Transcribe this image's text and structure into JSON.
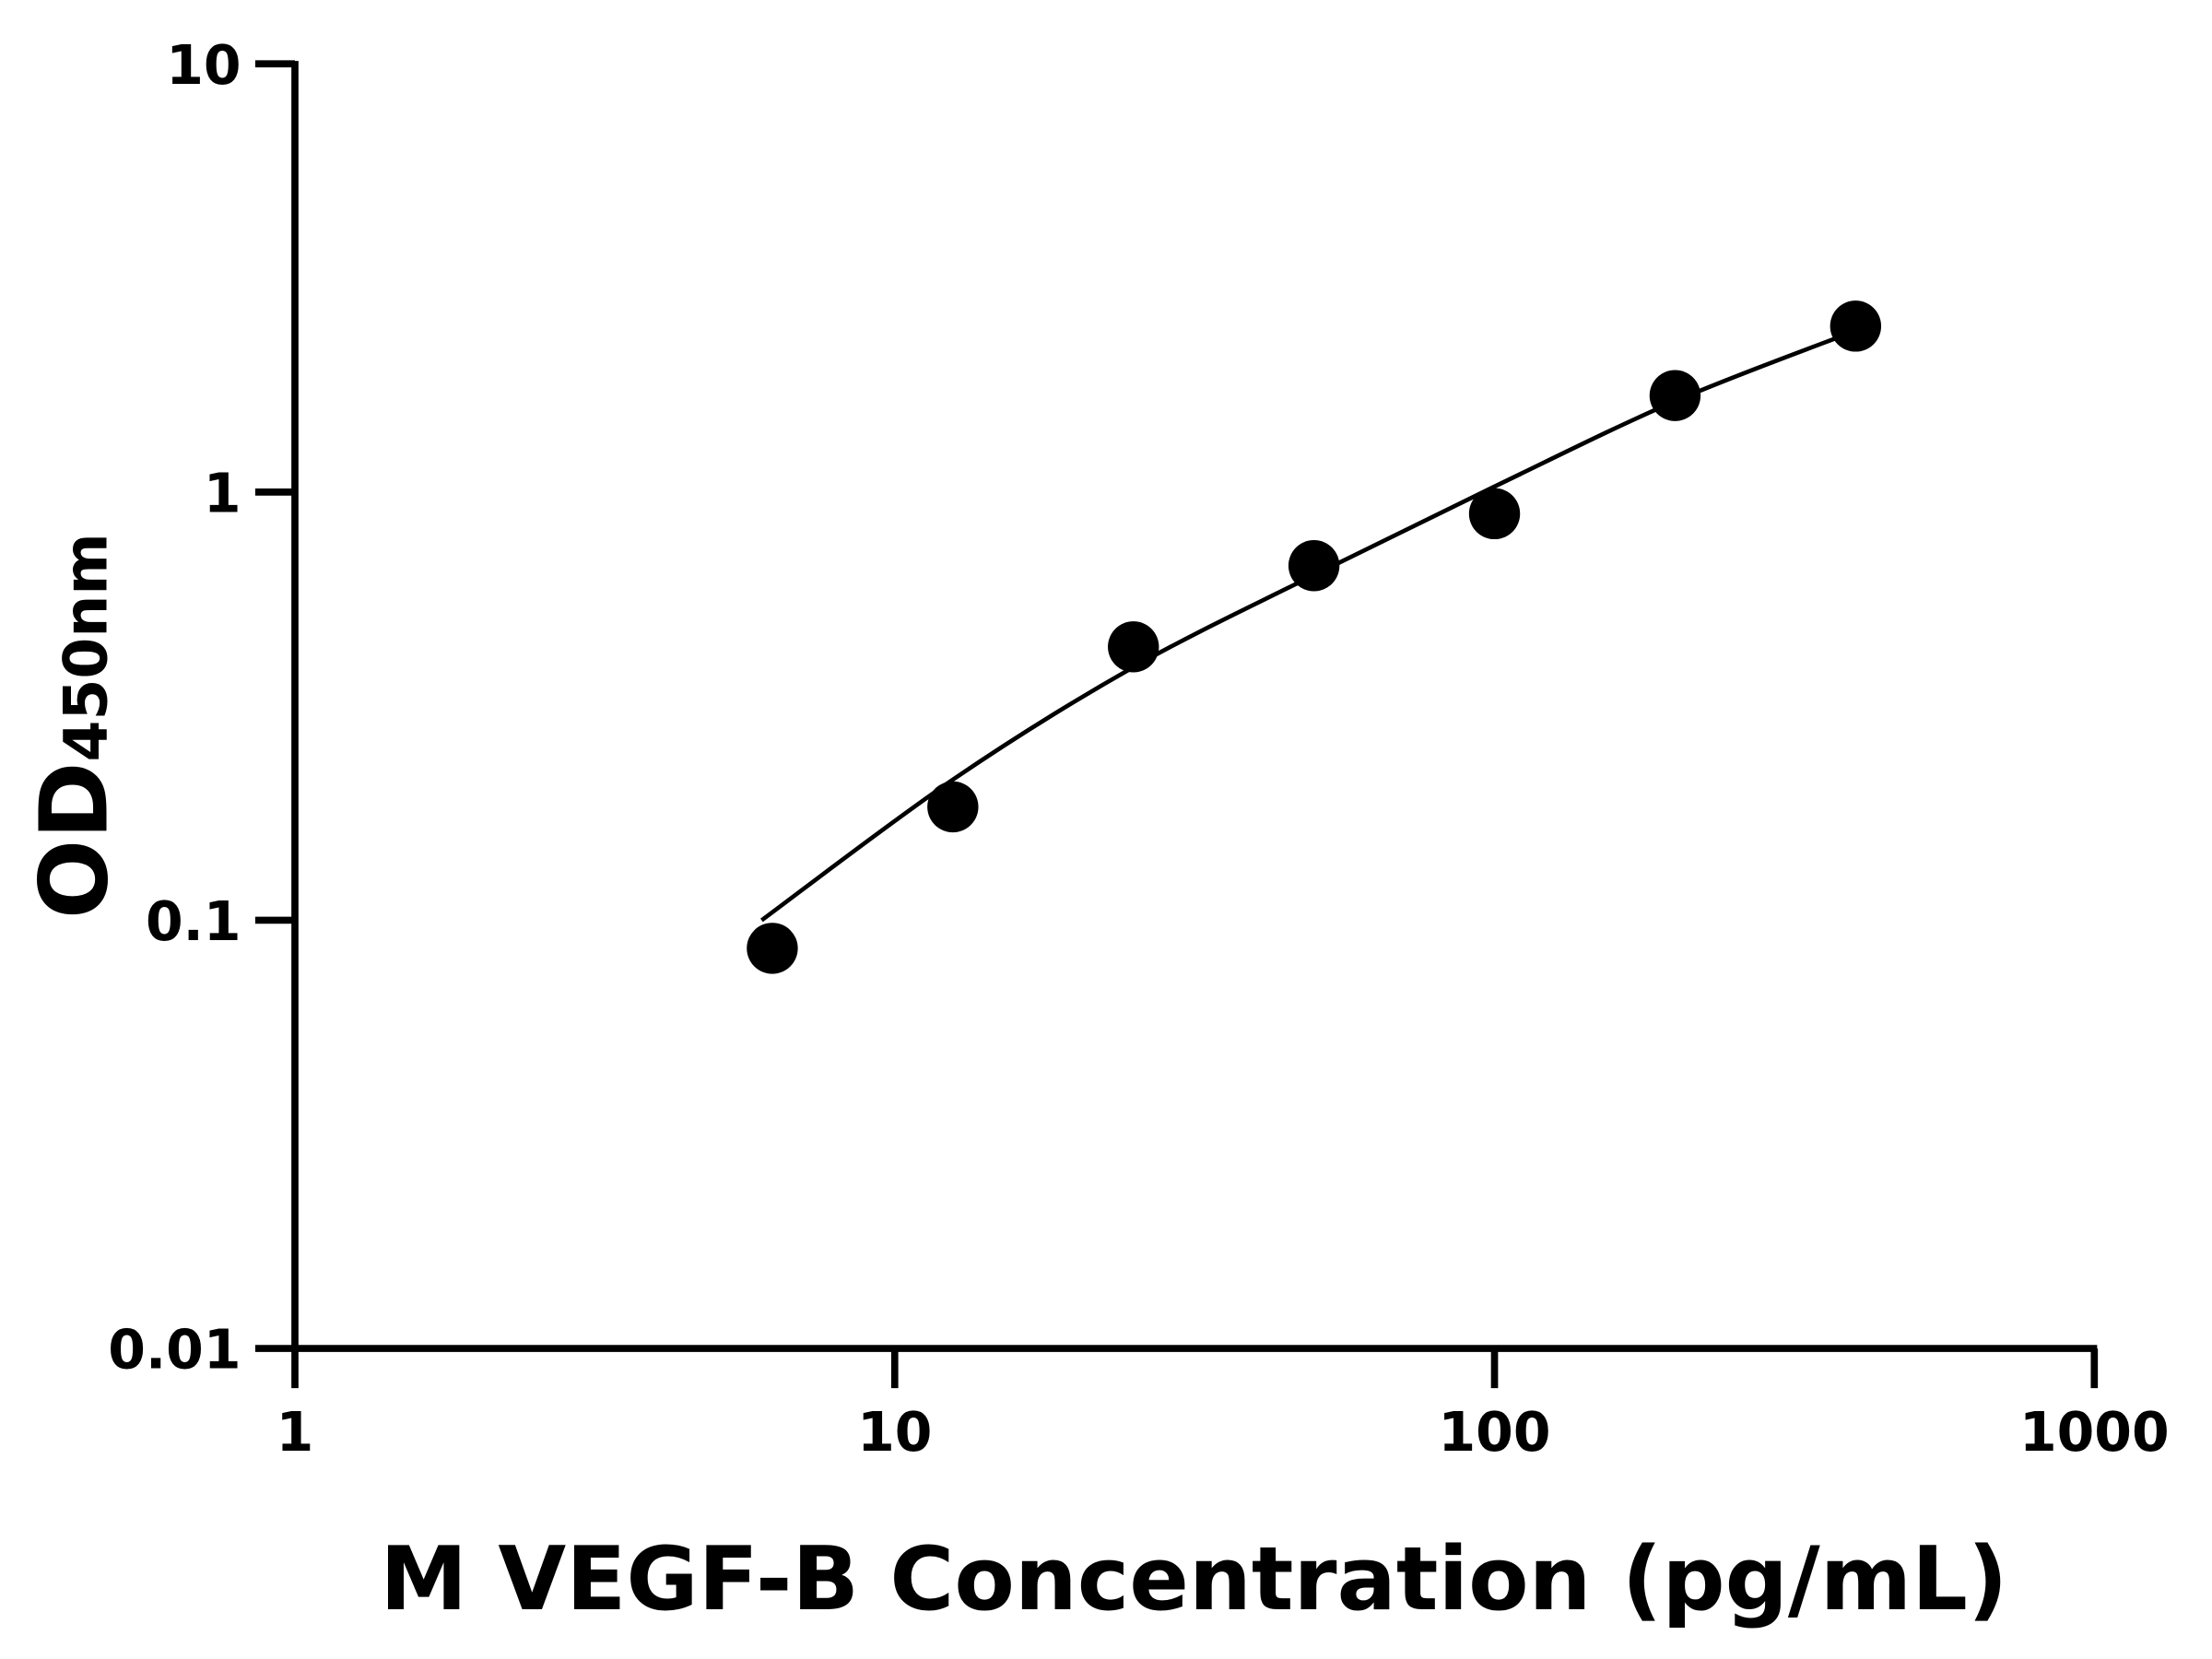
{
  "chart_data": {
    "type": "scatter",
    "title": "",
    "xlabel": "M VEGF-B Concentration (pg/mL)",
    "ylabel_main": "OD",
    "ylabel_sub": "450nm",
    "x_scale": "log",
    "y_scale": "log",
    "xlim": [
      1,
      1000
    ],
    "ylim": [
      0.01,
      10
    ],
    "x_ticks": [
      "1",
      "10",
      "100",
      "1000"
    ],
    "y_ticks": [
      "0.01",
      "0.1",
      "1",
      "10"
    ],
    "grid": false,
    "legend": "none",
    "colors": {
      "points": "#000000",
      "curve": "#000000",
      "axes": "#000000"
    },
    "series": [
      {
        "x": [
          6.25,
          12.5,
          25,
          50,
          100,
          200,
          400
        ],
        "y": [
          0.086,
          0.184,
          0.435,
          0.673,
          0.89,
          1.68,
          2.44
        ]
      }
    ],
    "fit_curve": {
      "x": [
        6,
        12.5,
        25,
        50,
        100,
        200,
        400
      ],
      "y": [
        0.1,
        0.213,
        0.39,
        0.64,
        1.03,
        1.63,
        2.38
      ]
    }
  }
}
